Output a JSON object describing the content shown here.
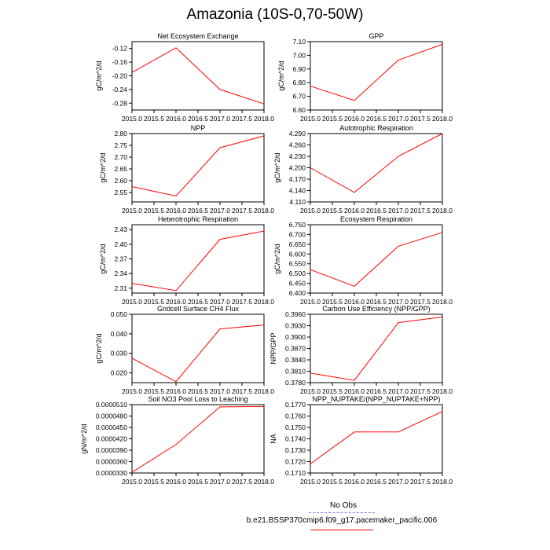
{
  "title": "Amazonia (10S-0,70-50W)",
  "legend": {
    "obs_label": "No Obs",
    "obs_color": "#8080ff",
    "case_label": "b.e21.BSSP370cmip6.f09_g17.pacemaker_pacific.006",
    "case_color": "#ff0000"
  },
  "chart_data": [
    {
      "type": "line",
      "title": "Net Ecosystem Exchange",
      "ylabel": "gC/m^2/d",
      "xlim": [
        2015.0,
        2018.0
      ],
      "xticks": [
        "2015.0",
        "2015.5",
        "2016.0",
        "2016.5",
        "2017.0",
        "2017.5",
        "2018.0"
      ],
      "ylim": [
        -0.3,
        -0.1
      ],
      "yticks": [
        "-0.12",
        "-0.16",
        "-0.20",
        "-0.24",
        "-0.28"
      ],
      "x": [
        2015,
        2016,
        2017,
        2018
      ],
      "y": [
        -0.19,
        -0.118,
        -0.24,
        -0.282
      ]
    },
    {
      "type": "line",
      "title": "GPP",
      "ylabel": "gC/m^2/d",
      "xlim": [
        2015.0,
        2018.0
      ],
      "xticks": [
        "2015.0",
        "2015.5",
        "2016.0",
        "2016.5",
        "2017.0",
        "2017.5",
        "2018.0"
      ],
      "ylim": [
        6.6,
        7.1
      ],
      "yticks": [
        "6.60",
        "6.70",
        "6.80",
        "6.90",
        "7.00",
        "7.10"
      ],
      "x": [
        2015,
        2016,
        2017,
        2018
      ],
      "y": [
        6.775,
        6.67,
        6.965,
        7.08
      ]
    },
    {
      "type": "line",
      "title": "NPP",
      "ylabel": "gC/m^2/d",
      "xlim": [
        2015.0,
        2018.0
      ],
      "xticks": [
        "2015.0",
        "2015.5",
        "2016.0",
        "2016.5",
        "2017.0",
        "2017.5",
        "2018.0"
      ],
      "ylim": [
        2.51,
        2.8
      ],
      "yticks": [
        "2.55",
        "2.60",
        "2.65",
        "2.70",
        "2.75",
        "2.80"
      ],
      "x": [
        2015,
        2016,
        2017,
        2018
      ],
      "y": [
        2.575,
        2.535,
        2.74,
        2.79
      ]
    },
    {
      "type": "line",
      "title": "Autotrophic Respiration",
      "ylabel": "gC/m^2/d",
      "xlim": [
        2015.0,
        2018.0
      ],
      "xticks": [
        "2015.0",
        "2015.5",
        "2016.0",
        "2016.5",
        "2017.0",
        "2017.5",
        "2018.0"
      ],
      "ylim": [
        4.11,
        4.29
      ],
      "yticks": [
        "4.110",
        "4.140",
        "4.170",
        "4.200",
        "4.230",
        "4.260",
        "4.290"
      ],
      "x": [
        2015,
        2016,
        2017,
        2018
      ],
      "y": [
        4.2,
        4.135,
        4.23,
        4.29
      ]
    },
    {
      "type": "line",
      "title": "Heterotrophic Respiration",
      "ylabel": "gC/m^2/d",
      "xlim": [
        2015.0,
        2018.0
      ],
      "xticks": [
        "2015.0",
        "2015.5",
        "2016.0",
        "2016.5",
        "2017.0",
        "2017.5",
        "2018.0"
      ],
      "ylim": [
        2.3,
        2.44
      ],
      "yticks": [
        "2.31",
        "2.34",
        "2.37",
        "2.40",
        "2.43"
      ],
      "x": [
        2015,
        2016,
        2017,
        2018
      ],
      "y": [
        2.32,
        2.305,
        2.41,
        2.427
      ]
    },
    {
      "type": "line",
      "title": "Ecosystem Respiration",
      "ylabel": "gC/m^2/d",
      "xlim": [
        2015.0,
        2018.0
      ],
      "xticks": [
        "2015.0",
        "2015.5",
        "2016.0",
        "2016.5",
        "2017.0",
        "2017.5",
        "2018.0"
      ],
      "ylim": [
        6.4,
        6.75
      ],
      "yticks": [
        "6.400",
        "6.450",
        "6.500",
        "6.550",
        "6.600",
        "6.650",
        "6.700",
        "6.750"
      ],
      "x": [
        2015,
        2016,
        2017,
        2018
      ],
      "y": [
        6.52,
        6.435,
        6.64,
        6.71
      ]
    },
    {
      "type": "line",
      "title": "Gridcell Surface CH4 Flux",
      "ylabel": "gC/m^2/d",
      "xlim": [
        2015.0,
        2018.0
      ],
      "xticks": [
        "2015.0",
        "2015.5",
        "2016.0",
        "2016.5",
        "2017.0",
        "2017.5",
        "2018.0"
      ],
      "ylim": [
        0.015,
        0.05
      ],
      "yticks": [
        "0.020",
        "0.030",
        "0.040",
        "0.050"
      ],
      "x": [
        2015,
        2016,
        2017,
        2018
      ],
      "y": [
        0.0275,
        0.0155,
        0.0425,
        0.0445
      ]
    },
    {
      "type": "line",
      "title": "Carbon Use Efficiency (NPP/GPP)",
      "ylabel": "NPP/GPP",
      "xlim": [
        2015.0,
        2018.0
      ],
      "xticks": [
        "2015.0",
        "2015.5",
        "2016.0",
        "2016.5",
        "2017.0",
        "2017.5",
        "2018.0"
      ],
      "ylim": [
        0.378,
        0.396
      ],
      "yticks": [
        "0.3780",
        "0.3810",
        "0.3840",
        "0.3870",
        "0.3900",
        "0.3930",
        "0.3960"
      ],
      "x": [
        2015,
        2016,
        2017,
        2018
      ],
      "y": [
        0.3805,
        0.3786,
        0.3938,
        0.3953
      ]
    },
    {
      "type": "line",
      "title": "Soil NO3 Pool Loss to Leaching",
      "ylabel": "gN/m^2/d",
      "xlim": [
        2015.0,
        2018.0
      ],
      "xticks": [
        "2015.0",
        "2015.5",
        "2016.0",
        "2016.5",
        "2017.0",
        "2017.5",
        "2018.0"
      ],
      "ylim": [
        3.3e-05,
        5.1e-05
      ],
      "yticks": [
        "0.0000330",
        "0.0000360",
        "0.0000390",
        "0.0000420",
        "0.0000450",
        "0.0000480",
        "0.0000510"
      ],
      "x": [
        2015,
        2016,
        2017,
        2018
      ],
      "y": [
        3.32e-05,
        4.05e-05,
        5.04e-05,
        5.05e-05
      ]
    },
    {
      "type": "line",
      "title": "NPP_NUPTAKE/(NPP_NUPTAKE+NPP)",
      "ylabel": "NA",
      "xlim": [
        2015.0,
        2018.0
      ],
      "xticks": [
        "2015.0",
        "2015.5",
        "2016.0",
        "2016.5",
        "2017.0",
        "2017.5",
        "2018.0"
      ],
      "ylim": [
        0.171,
        0.177
      ],
      "yticks": [
        "0.1710",
        "0.1720",
        "0.1730",
        "0.1740",
        "0.1750",
        "0.1760",
        "0.1770"
      ],
      "x": [
        2015,
        2016,
        2017,
        2018
      ],
      "y": [
        0.1718,
        0.1746,
        0.1746,
        0.1764
      ]
    }
  ]
}
